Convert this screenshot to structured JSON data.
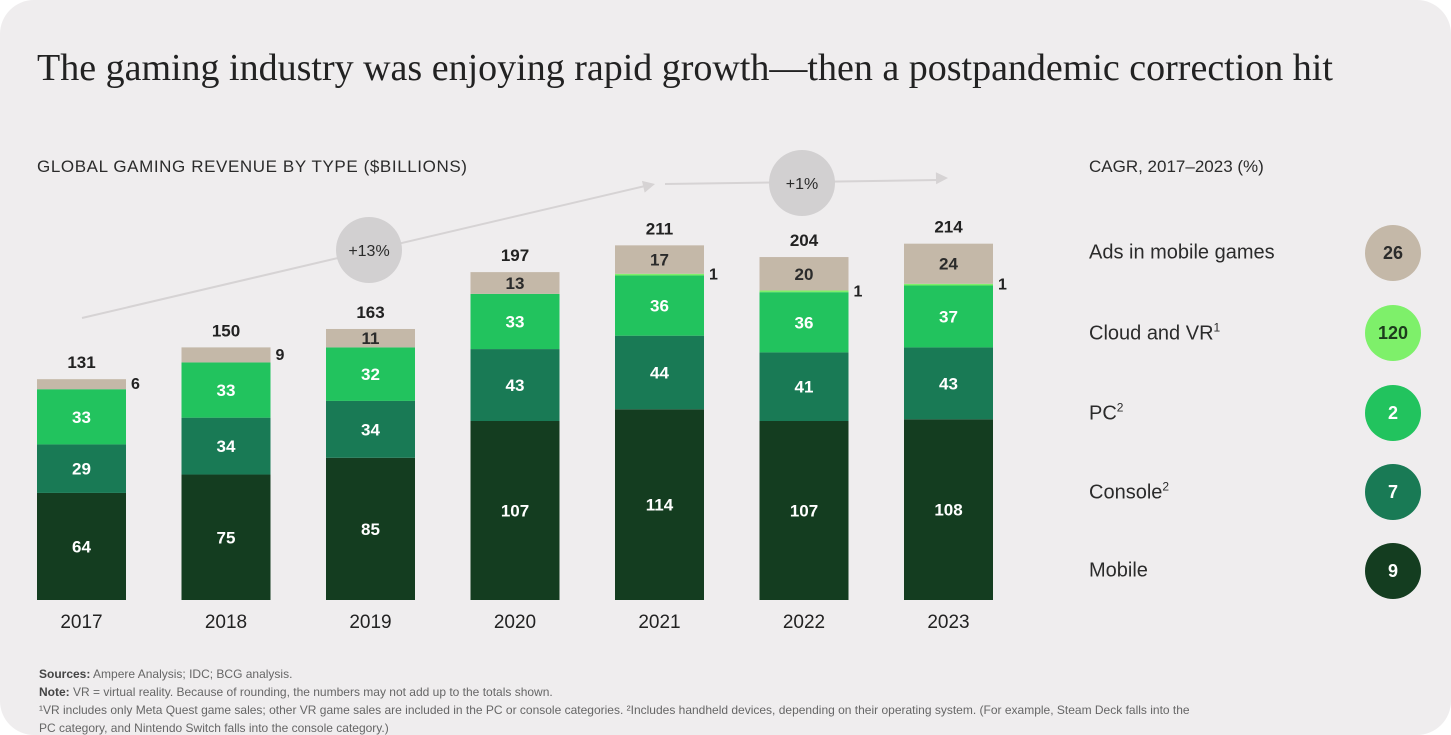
{
  "header": {
    "title": "The gaming industry was enjoying rapid growth—then a postpandemic correction hit"
  },
  "chart_data": {
    "type": "bar",
    "stacked": true,
    "title": "GLOBAL GAMING REVENUE BY TYPE ($BILLIONS)",
    "categories": [
      "2017",
      "2018",
      "2019",
      "2020",
      "2021",
      "2022",
      "2023"
    ],
    "series": [
      {
        "name": "Mobile",
        "color": "#143d20",
        "values": [
          64,
          75,
          85,
          107,
          114,
          107,
          108
        ]
      },
      {
        "name": "Console",
        "color": "#197a55",
        "values": [
          29,
          34,
          34,
          43,
          44,
          41,
          43
        ]
      },
      {
        "name": "PC",
        "color": "#22c35e",
        "values": [
          33,
          33,
          32,
          33,
          36,
          36,
          37
        ]
      },
      {
        "name": "Cloud and VR",
        "color": "#7ef06a",
        "values": [
          0,
          0,
          0,
          0,
          1,
          1,
          1
        ]
      },
      {
        "name": "Ads in mobile games",
        "color": "#c4b8a8",
        "values": [
          6,
          9,
          11,
          13,
          17,
          20,
          24
        ]
      }
    ],
    "segment_labels": [
      [
        "64",
        "29",
        "33",
        "",
        "6"
      ],
      [
        "75",
        "34",
        "33",
        "",
        "9"
      ],
      [
        "85",
        "34",
        "32",
        "",
        "11"
      ],
      [
        "107",
        "43",
        "33",
        "",
        "13"
      ],
      [
        "114",
        "44",
        "36",
        "1",
        "17"
      ],
      [
        "107",
        "41",
        "36",
        "1",
        "20"
      ],
      [
        "108",
        "43",
        "37",
        "1",
        "24"
      ]
    ],
    "totals": [
      "131",
      "150",
      "163",
      "197",
      "211",
      "204",
      "214"
    ],
    "ylim": [
      0,
      214
    ],
    "grid": false,
    "growth_annotations": [
      {
        "label": "+13%",
        "from": "2017",
        "to": "2021"
      },
      {
        "label": "+1%",
        "from": "2021",
        "to": "2023"
      }
    ]
  },
  "cagr": {
    "header": "CAGR, 2017–2023 (%)",
    "items": [
      {
        "label": "Ads in mobile games",
        "sup": "",
        "value": "26",
        "color": "#c4b8a8",
        "text_color": "#2b2b2b"
      },
      {
        "label": "Cloud and VR",
        "sup": "1",
        "value": "120",
        "color": "#7ef06a",
        "text_color": "#1d3b1d"
      },
      {
        "label": "PC",
        "sup": "2",
        "value": "2",
        "color": "#22c35e",
        "text_color": "#ffffff"
      },
      {
        "label": "Console",
        "sup": "2",
        "value": "7",
        "color": "#197a55",
        "text_color": "#ffffff"
      },
      {
        "label": "Mobile",
        "sup": "",
        "value": "9",
        "color": "#143d20",
        "text_color": "#ffffff"
      }
    ]
  },
  "footnotes": {
    "sources_label": "Sources:",
    "sources_text": "Ampere Analysis; IDC; BCG analysis.",
    "note_label": "Note:",
    "note_text": "VR = virtual reality. Because of rounding, the numbers may not add up to the totals shown.",
    "line3": "¹VR includes only Meta Quest game sales; other VR game sales are included in the PC or console categories. ²Includes handheld devices, depending on their operating system. (For example, Steam Deck falls into the",
    "line4": "PC category, and Nintendo Switch falls into the console category.)"
  }
}
